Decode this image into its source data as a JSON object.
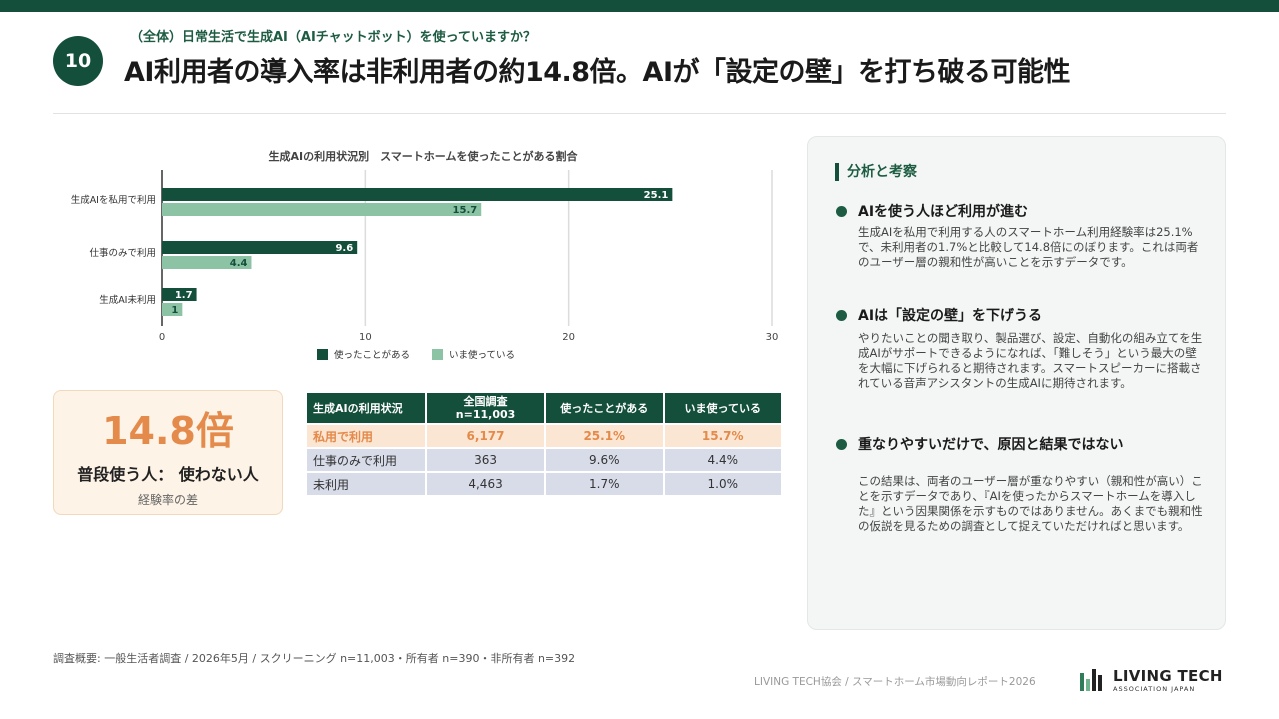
{
  "header": {
    "slide_number": "10",
    "subtitle": "（全体）日常生活で生成AI（AIチャットボット）を使っていますか？",
    "title": "AI利用者の導入率は非利用者の約14.8倍。AIが「設定の壁」を打ち破る可能性"
  },
  "chart_data": {
    "type": "bar",
    "orientation": "horizontal",
    "title": "生成AIの利用状況別　スマートホームを使ったことがある割合",
    "categories": [
      "生成AIを私用で利用",
      "仕事のみで利用",
      "生成AI未利用"
    ],
    "series": [
      {
        "name": "使ったことがある",
        "values": [
          25.1,
          9.6,
          1.7
        ],
        "color": "#134f3a"
      },
      {
        "name": "いま使っている",
        "values": [
          15.7,
          4.4,
          1.0
        ],
        "color": "#8cc3a5"
      }
    ],
    "value_labels": [
      [
        "25.1",
        "9.6",
        "1.7"
      ],
      [
        "15.7",
        "4.4",
        "1"
      ]
    ],
    "xlim": [
      0,
      30
    ],
    "xticks": [
      0,
      10,
      20,
      30
    ],
    "grid": true,
    "legend": "bottom"
  },
  "kpi": {
    "value": "14.8倍",
    "label": "普段使う人： 使わない人",
    "note": "経験率の差"
  },
  "table": {
    "headers": [
      "生成AIの利用状況",
      "全国調査\nn=11,003",
      "使ったことがある",
      "いま使っている"
    ],
    "rows": [
      [
        "私用で利用",
        "6,177",
        "25.1%",
        "15.7%"
      ],
      [
        "仕事のみで利用",
        "363",
        "9.6%",
        "4.4%"
      ],
      [
        "未利用",
        "4,463",
        "1.7%",
        "1.0%"
      ]
    ]
  },
  "analysis": {
    "title": "分析と考察",
    "points": [
      {
        "heading": "AIを使う人ほど利用が進む",
        "body": "生成AIを私用で利用する人のスマートホーム利用経験率は25.1%で、未利用者の1.7%と比較して14.8倍にのぼります。これは両者のユーザー層の親和性が高いことを示すデータです。"
      },
      {
        "heading": "AIは「設定の壁」を下げうる",
        "body": "やりたいことの聞き取り、製品選び、設定、自動化の組み立てを生成AIがサポートできるようになれば、「難しそう」という最大の壁を大幅に下げられると期待されます。スマートスピーカーに搭載されている音声アシスタントの生成AIに期待されます。"
      },
      {
        "heading": "重なりやすいだけで、原因と結果ではない",
        "body": "この結果は、両者のユーザー層が重なりやすい（親和性が高い）ことを示すデータであり、『AIを使ったからスマートホームを導入した』という因果関係を示すものではありません。あくまでも親和性の仮説を見るための調査として捉えていただければと思います。"
      }
    ]
  },
  "footer": {
    "source": "調査概要: 一般生活者調査 / 2026年5月 / スクリーニング n=11,003・所有者 n=390・非所有者 n=392",
    "org": "LIVING TECH協会 / スマートホーム市場動向レポート2026",
    "logo_text": "LIVING TECH",
    "logo_sub": "ASSOCIATION JAPAN"
  },
  "colors": {
    "primary": "#134f3a",
    "secondary": "#8cc3a5",
    "accent": "#e48a4a"
  }
}
